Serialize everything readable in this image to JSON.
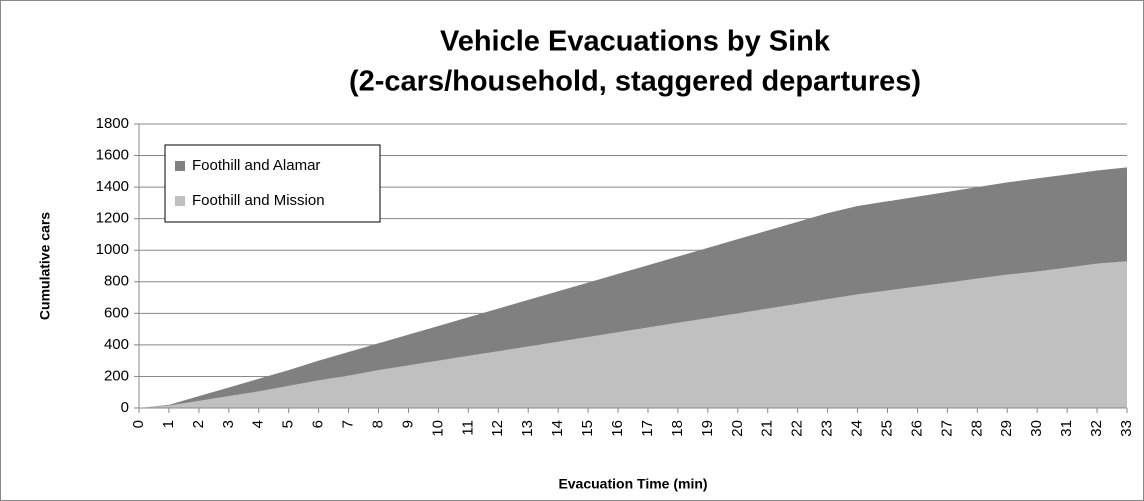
{
  "chart_data": {
    "type": "stacked-area",
    "title": "Vehicle Evacuations by Sink",
    "subtitle": "(2-cars/household, staggered departures)",
    "x_label": "Evacuation Time (min)",
    "y_label": "Cumulative cars",
    "x": [
      0,
      1,
      2,
      3,
      4,
      5,
      6,
      7,
      8,
      9,
      10,
      11,
      12,
      13,
      14,
      15,
      16,
      17,
      18,
      19,
      20,
      21,
      22,
      23,
      24,
      25,
      26,
      27,
      28,
      29,
      30,
      31,
      32,
      33
    ],
    "xlim": [
      0,
      33
    ],
    "xticks": [
      0,
      1,
      2,
      3,
      4,
      5,
      6,
      7,
      8,
      9,
      10,
      11,
      12,
      13,
      14,
      15,
      16,
      17,
      18,
      19,
      20,
      21,
      22,
      23,
      24,
      25,
      26,
      27,
      28,
      29,
      30,
      31,
      32,
      33
    ],
    "ylim": [
      0,
      1800
    ],
    "yticks": [
      0,
      200,
      400,
      600,
      800,
      1000,
      1200,
      1400,
      1600,
      1800
    ],
    "grid": true,
    "legend": "top-left",
    "series": [
      {
        "name": "Foothill and Mission",
        "color": "#c0c0c0",
        "values": [
          0,
          15,
          45,
          75,
          105,
          140,
          175,
          205,
          240,
          270,
          300,
          330,
          360,
          390,
          420,
          450,
          480,
          510,
          540,
          570,
          600,
          630,
          660,
          690,
          720,
          745,
          770,
          795,
          820,
          845,
          865,
          890,
          915,
          930
        ]
      },
      {
        "name": "Foothill and Alamar",
        "color": "#808080",
        "values": [
          0,
          5,
          30,
          55,
          80,
          100,
          125,
          150,
          170,
          195,
          220,
          245,
          270,
          295,
          320,
          345,
          370,
          395,
          420,
          445,
          470,
          495,
          520,
          545,
          560,
          565,
          570,
          575,
          580,
          585,
          590,
          590,
          590,
          595
        ]
      }
    ]
  }
}
